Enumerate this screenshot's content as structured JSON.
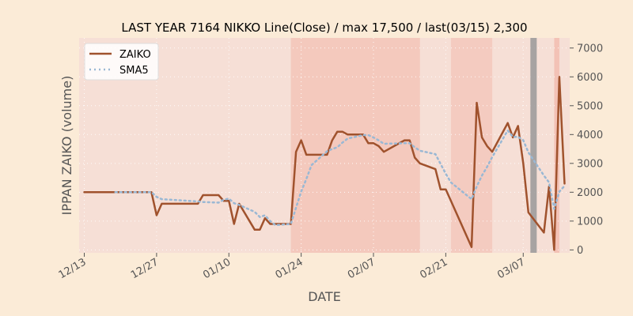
{
  "chart_data": {
    "type": "line",
    "title": "LAST YEAR 7164 NIKKO Line(Close) / max 17,500 / last(03/15) 2,300",
    "xlabel": "DATE",
    "ylabel": "IPPAN ZAIKO (volume)",
    "x_start": "2023-12-12",
    "x_end": "2024-03-16",
    "ylim": [
      -100,
      7350
    ],
    "yticks": [
      0,
      1000,
      2000,
      3000,
      4000,
      5000,
      6000,
      7000
    ],
    "xticks": [
      {
        "date": "2023-12-13",
        "label": "12/13"
      },
      {
        "date": "2023-12-27",
        "label": "12/27"
      },
      {
        "date": "2024-01-10",
        "label": "01/10"
      },
      {
        "date": "2024-01-24",
        "label": "01/24"
      },
      {
        "date": "2024-02-07",
        "label": "02/07"
      },
      {
        "date": "2024-02-21",
        "label": "02/21"
      },
      {
        "date": "2024-03-07",
        "label": "03/07"
      }
    ],
    "grid": true,
    "legend": "top-left",
    "colors": {
      "page_bg": "#fbebd7",
      "plot_bg": "#f6dfd6",
      "zaiko": "#a0522d",
      "sma5": "#9ab8d4",
      "band": "#f0a090",
      "marker": "#999999"
    },
    "series": [
      {
        "name": "ZAIKO",
        "style": "solid",
        "points": [
          [
            "2023-12-13",
            2000
          ],
          [
            "2023-12-14",
            2000
          ],
          [
            "2023-12-15",
            2000
          ],
          [
            "2023-12-18",
            2000
          ],
          [
            "2023-12-19",
            2000
          ],
          [
            "2023-12-20",
            2000
          ],
          [
            "2023-12-21",
            2000
          ],
          [
            "2023-12-22",
            2000
          ],
          [
            "2023-12-25",
            2000
          ],
          [
            "2023-12-26",
            2000
          ],
          [
            "2023-12-27",
            1200
          ],
          [
            "2023-12-28",
            1600
          ],
          [
            "2024-01-04",
            1600
          ],
          [
            "2024-01-05",
            1900
          ],
          [
            "2024-01-08",
            1900
          ],
          [
            "2024-01-09",
            1700
          ],
          [
            "2024-01-10",
            1700
          ],
          [
            "2024-01-11",
            900
          ],
          [
            "2024-01-12",
            1600
          ],
          [
            "2024-01-15",
            700
          ],
          [
            "2024-01-16",
            700
          ],
          [
            "2024-01-17",
            1100
          ],
          [
            "2024-01-18",
            900
          ],
          [
            "2024-01-19",
            900
          ],
          [
            "2024-01-22",
            900
          ],
          [
            "2024-01-23",
            3400
          ],
          [
            "2024-01-24",
            3800
          ],
          [
            "2024-01-25",
            3300
          ],
          [
            "2024-01-26",
            3300
          ],
          [
            "2024-01-29",
            3300
          ],
          [
            "2024-01-30",
            3800
          ],
          [
            "2024-01-31",
            4100
          ],
          [
            "2024-02-01",
            4100
          ],
          [
            "2024-02-02",
            4000
          ],
          [
            "2024-02-05",
            4000
          ],
          [
            "2024-02-06",
            3700
          ],
          [
            "2024-02-07",
            3700
          ],
          [
            "2024-02-08",
            3600
          ],
          [
            "2024-02-09",
            3400
          ],
          [
            "2024-02-13",
            3800
          ],
          [
            "2024-02-14",
            3800
          ],
          [
            "2024-02-15",
            3200
          ],
          [
            "2024-02-16",
            3000
          ],
          [
            "2024-02-19",
            2800
          ],
          [
            "2024-02-20",
            2100
          ],
          [
            "2024-02-21",
            2100
          ],
          [
            "2024-02-22",
            1700
          ],
          [
            "2024-02-26",
            100
          ],
          [
            "2024-02-27",
            5100
          ],
          [
            "2024-02-28",
            3900
          ],
          [
            "2024-02-29",
            3600
          ],
          [
            "2024-03-01",
            3400
          ],
          [
            "2024-03-04",
            4400
          ],
          [
            "2024-03-05",
            3900
          ],
          [
            "2024-03-06",
            4300
          ],
          [
            "2024-03-07",
            3000
          ],
          [
            "2024-03-08",
            1300
          ],
          [
            "2024-03-11",
            600
          ],
          [
            "2024-03-12",
            2200
          ],
          [
            "2024-03-13",
            0
          ],
          [
            "2024-03-14",
            6000
          ],
          [
            "2024-03-15",
            2300
          ]
        ]
      },
      {
        "name": "SMA5",
        "style": "dotted",
        "points": [
          [
            "2023-12-19",
            2000
          ],
          [
            "2023-12-20",
            2000
          ],
          [
            "2023-12-21",
            2000
          ],
          [
            "2023-12-22",
            2000
          ],
          [
            "2023-12-25",
            2000
          ],
          [
            "2023-12-26",
            2000
          ],
          [
            "2023-12-27",
            1840
          ],
          [
            "2023-12-28",
            1760
          ],
          [
            "2024-01-04",
            1680
          ],
          [
            "2024-01-05",
            1660
          ],
          [
            "2024-01-08",
            1640
          ],
          [
            "2024-01-09",
            1740
          ],
          [
            "2024-01-10",
            1780
          ],
          [
            "2024-01-11",
            1620
          ],
          [
            "2024-01-12",
            1560
          ],
          [
            "2024-01-15",
            1320
          ],
          [
            "2024-01-16",
            1140
          ],
          [
            "2024-01-17",
            1200
          ],
          [
            "2024-01-18",
            1000
          ],
          [
            "2024-01-19",
            860
          ],
          [
            "2024-01-22",
            900
          ],
          [
            "2024-01-23",
            1460
          ],
          [
            "2024-01-24",
            2020
          ],
          [
            "2024-01-25",
            2460
          ],
          [
            "2024-01-26",
            2940
          ],
          [
            "2024-01-29",
            3420
          ],
          [
            "2024-01-30",
            3500
          ],
          [
            "2024-01-31",
            3560
          ],
          [
            "2024-02-01",
            3720
          ],
          [
            "2024-02-02",
            3860
          ],
          [
            "2024-02-05",
            3980
          ],
          [
            "2024-02-06",
            3980
          ],
          [
            "2024-02-07",
            3900
          ],
          [
            "2024-02-08",
            3800
          ],
          [
            "2024-02-09",
            3680
          ],
          [
            "2024-02-13",
            3700
          ],
          [
            "2024-02-14",
            3700
          ],
          [
            "2024-02-15",
            3560
          ],
          [
            "2024-02-16",
            3440
          ],
          [
            "2024-02-19",
            3320
          ],
          [
            "2024-02-20",
            2980
          ],
          [
            "2024-02-21",
            2640
          ],
          [
            "2024-02-22",
            2340
          ],
          [
            "2024-02-26",
            1760
          ],
          [
            "2024-02-27",
            2200
          ],
          [
            "2024-02-28",
            2580
          ],
          [
            "2024-02-29",
            2880
          ],
          [
            "2024-03-01",
            3220
          ],
          [
            "2024-03-04",
            4140
          ],
          [
            "2024-03-05",
            3920
          ],
          [
            "2024-03-06",
            3920
          ],
          [
            "2024-03-07",
            3800
          ],
          [
            "2024-03-08",
            3380
          ],
          [
            "2024-03-11",
            2580
          ],
          [
            "2024-03-12",
            2340
          ],
          [
            "2024-03-13",
            1420
          ],
          [
            "2024-03-14",
            2020
          ],
          [
            "2024-03-15",
            2220
          ]
        ]
      }
    ],
    "bands": [
      {
        "start": "2024-01-22",
        "end": "2024-02-16",
        "intensity": 0.35
      },
      {
        "start": "2024-02-22",
        "end": "2024-03-01",
        "intensity": 0.3
      },
      {
        "start": "2024-03-13",
        "end": "2024-03-14",
        "intensity": 0.45
      }
    ],
    "markers": [
      {
        "date": "2024-03-09"
      }
    ]
  }
}
